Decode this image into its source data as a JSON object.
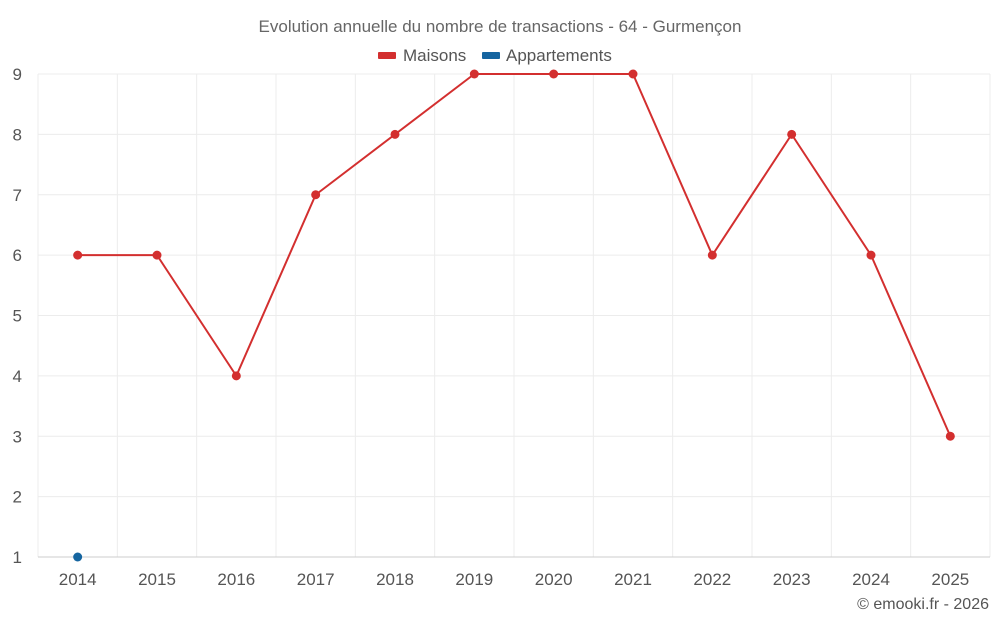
{
  "chart_data": {
    "type": "line",
    "title": "Evolution annuelle du nombre de transactions - 64 - Gurmençon",
    "categories": [
      "2014",
      "2015",
      "2016",
      "2017",
      "2018",
      "2019",
      "2020",
      "2021",
      "2022",
      "2023",
      "2024",
      "2025"
    ],
    "series": [
      {
        "name": "Maisons",
        "color": "#d32f2f",
        "values": [
          6,
          6,
          4,
          7,
          8,
          9,
          9,
          9,
          6,
          8,
          6,
          3
        ]
      },
      {
        "name": "Appartements",
        "color": "#1565a0",
        "values": [
          1,
          null,
          null,
          null,
          null,
          null,
          null,
          null,
          null,
          null,
          null,
          null
        ]
      }
    ],
    "ylim": [
      1,
      9
    ],
    "yticks": [
      1,
      2,
      3,
      4,
      5,
      6,
      7,
      8,
      9
    ],
    "legend_position": "top-center",
    "grid": true,
    "credit": "© emooki.fr - 2026"
  }
}
